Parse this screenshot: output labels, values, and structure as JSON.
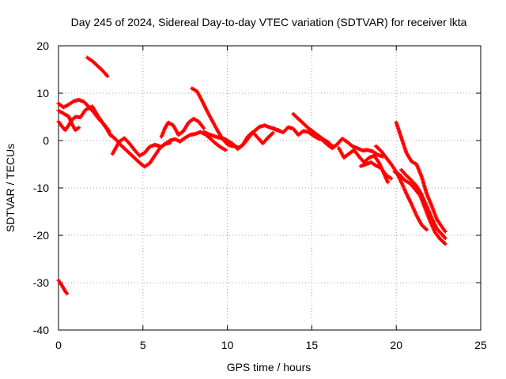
{
  "chart_data": {
    "type": "scatter",
    "title": "Day 245 of 2024, Sidereal Day-to-day VTEC variation (SDTVAR) for receiver lkta",
    "xlabel": "GPS time / hours",
    "ylabel": "SDTVAR / TECUs",
    "xlim": [
      0,
      25
    ],
    "ylim": [
      -40,
      20
    ],
    "xticks": [
      0,
      5,
      10,
      15,
      20,
      25
    ],
    "yticks": [
      -40,
      -30,
      -20,
      -10,
      0,
      10,
      20
    ],
    "grid": true,
    "series_color": "#ff0000",
    "marker": "plus",
    "tracks": [
      [
        [
          0.0,
          -29.5
        ],
        [
          0.2,
          -30.6
        ],
        [
          0.4,
          -31.8
        ],
        [
          0.5,
          -32.3
        ]
      ],
      [
        [
          1.7,
          17.5
        ],
        [
          2.0,
          16.8
        ],
        [
          2.3,
          15.8
        ],
        [
          2.6,
          14.8
        ],
        [
          2.9,
          13.6
        ]
      ],
      [
        [
          0.0,
          7.8
        ],
        [
          0.3,
          7.0
        ],
        [
          0.6,
          7.6
        ],
        [
          0.9,
          8.3
        ],
        [
          1.2,
          8.6
        ],
        [
          1.5,
          8.2
        ],
        [
          1.8,
          7.1
        ],
        [
          2.1,
          5.9
        ],
        [
          2.4,
          4.5
        ],
        [
          2.7,
          3.4
        ],
        [
          3.0,
          2.0
        ]
      ],
      [
        [
          0.0,
          4.0
        ],
        [
          0.2,
          3.0
        ],
        [
          0.4,
          2.2
        ],
        [
          0.6,
          3.2
        ],
        [
          0.8,
          4.4
        ],
        [
          1.0,
          5.0
        ],
        [
          1.3,
          4.9
        ],
        [
          1.6,
          6.5
        ],
        [
          2.0,
          7.2
        ],
        [
          2.3,
          5.4
        ],
        [
          2.6,
          3.8
        ],
        [
          2.9,
          2.2
        ],
        [
          3.1,
          1.0
        ]
      ],
      [
        [
          0.0,
          6.3
        ],
        [
          0.3,
          5.7
        ],
        [
          0.6,
          5.1
        ],
        [
          0.8,
          3.5
        ],
        [
          1.0,
          2.2
        ],
        [
          1.2,
          2.7
        ]
      ],
      [
        [
          3.1,
          1.2
        ],
        [
          3.4,
          0.2
        ],
        [
          3.7,
          -1.0
        ],
        [
          4.0,
          -2.0
        ],
        [
          4.3,
          -3.0
        ],
        [
          4.6,
          -4.0
        ],
        [
          4.9,
          -5.0
        ],
        [
          5.1,
          -5.5
        ],
        [
          5.4,
          -4.8
        ],
        [
          5.7,
          -3.2
        ],
        [
          6.0,
          -1.6
        ],
        [
          6.3,
          -0.7
        ],
        [
          6.6,
          -0.5
        ]
      ],
      [
        [
          3.2,
          -2.8
        ],
        [
          3.4,
          -1.5
        ],
        [
          3.6,
          -0.2
        ],
        [
          3.9,
          0.5
        ],
        [
          4.2,
          -0.6
        ],
        [
          4.5,
          -2.0
        ],
        [
          4.8,
          -3.2
        ],
        [
          5.1,
          -2.6
        ],
        [
          5.4,
          -1.3
        ],
        [
          5.7,
          -0.9
        ],
        [
          6.0,
          -1.2
        ]
      ],
      [
        [
          6.0,
          -1.5
        ],
        [
          6.3,
          -0.8
        ],
        [
          6.6,
          0.0
        ],
        [
          6.9,
          0.3
        ],
        [
          7.2,
          -0.2
        ],
        [
          7.5,
          0.6
        ],
        [
          7.8,
          1.2
        ],
        [
          8.1,
          1.4
        ],
        [
          8.4,
          1.8
        ],
        [
          8.7,
          1.3
        ],
        [
          9.0,
          0.4
        ],
        [
          9.3,
          -0.6
        ],
        [
          9.6,
          -1.4
        ],
        [
          9.9,
          -2.0
        ]
      ],
      [
        [
          6.1,
          0.8
        ],
        [
          6.3,
          2.6
        ],
        [
          6.5,
          3.8
        ],
        [
          6.8,
          3.2
        ],
        [
          7.1,
          1.2
        ],
        [
          7.4,
          2.0
        ],
        [
          7.7,
          3.8
        ],
        [
          8.0,
          4.6
        ],
        [
          8.3,
          4.0
        ],
        [
          8.6,
          2.6
        ]
      ],
      [
        [
          7.9,
          11.0
        ],
        [
          8.2,
          10.4
        ],
        [
          8.5,
          8.4
        ],
        [
          8.8,
          6.2
        ],
        [
          9.1,
          4.2
        ],
        [
          9.4,
          2.2
        ],
        [
          9.7,
          0.4
        ],
        [
          10.0,
          -0.8
        ],
        [
          10.3,
          -1.2
        ]
      ],
      [
        [
          8.6,
          1.8
        ],
        [
          9.0,
          1.2
        ],
        [
          9.4,
          0.7
        ],
        [
          9.8,
          0.4
        ],
        [
          10.2,
          -0.4
        ],
        [
          10.5,
          -1.3
        ]
      ],
      [
        [
          10.1,
          -0.5
        ],
        [
          10.4,
          -1.2
        ],
        [
          10.7,
          -1.5
        ],
        [
          11.0,
          -0.6
        ],
        [
          11.3,
          0.8
        ],
        [
          11.6,
          2.0
        ],
        [
          11.9,
          2.9
        ],
        [
          12.2,
          3.2
        ],
        [
          12.5,
          2.8
        ],
        [
          12.8,
          2.4
        ],
        [
          13.1,
          2.0
        ]
      ],
      [
        [
          10.6,
          -1.8
        ],
        [
          10.9,
          -1.0
        ],
        [
          11.2,
          0.8
        ],
        [
          11.5,
          1.8
        ],
        [
          11.8,
          0.6
        ],
        [
          12.1,
          -0.6
        ],
        [
          12.4,
          0.6
        ],
        [
          12.7,
          1.6
        ]
      ],
      [
        [
          12.7,
          2.6
        ],
        [
          13.0,
          2.2
        ],
        [
          13.3,
          1.7
        ],
        [
          13.6,
          2.8
        ],
        [
          13.9,
          2.5
        ],
        [
          14.2,
          1.2
        ],
        [
          14.5,
          2.0
        ],
        [
          14.8,
          1.8
        ],
        [
          15.1,
          1.0
        ],
        [
          15.4,
          0.4
        ],
        [
          15.7,
          0.2
        ],
        [
          16.0,
          -0.4
        ]
      ],
      [
        [
          13.9,
          5.6
        ],
        [
          14.2,
          4.6
        ],
        [
          14.5,
          3.6
        ],
        [
          14.8,
          2.6
        ],
        [
          15.1,
          1.8
        ],
        [
          15.4,
          1.0
        ],
        [
          15.7,
          0.2
        ],
        [
          16.0,
          -0.6
        ],
        [
          16.3,
          -1.4
        ]
      ],
      [
        [
          15.0,
          1.8
        ],
        [
          15.3,
          1.0
        ],
        [
          15.6,
          0.2
        ],
        [
          15.9,
          -0.8
        ],
        [
          16.2,
          -1.6
        ],
        [
          16.5,
          -0.8
        ],
        [
          16.8,
          0.4
        ],
        [
          17.1,
          -0.3
        ],
        [
          17.4,
          -1.2
        ],
        [
          17.7,
          -1.6
        ],
        [
          18.0,
          -2.1
        ],
        [
          18.3,
          -2.0
        ],
        [
          18.6,
          -2.3
        ],
        [
          18.9,
          -3.0
        ],
        [
          19.2,
          -3.4
        ]
      ],
      [
        [
          16.6,
          -1.6
        ],
        [
          16.9,
          -3.6
        ],
        [
          17.2,
          -2.8
        ],
        [
          17.5,
          -2.0
        ],
        [
          17.8,
          -3.4
        ],
        [
          18.1,
          -4.6
        ],
        [
          18.4,
          -3.6
        ],
        [
          18.7,
          -3.2
        ],
        [
          19.0,
          -4.8
        ],
        [
          19.3,
          -7.2
        ],
        [
          19.5,
          -8.8
        ]
      ],
      [
        [
          17.9,
          -5.4
        ],
        [
          18.2,
          -5.0
        ],
        [
          18.5,
          -4.6
        ],
        [
          18.8,
          -5.3
        ],
        [
          19.1,
          -5.8
        ],
        [
          19.4,
          -7.3
        ],
        [
          19.7,
          -8.0
        ]
      ],
      [
        [
          18.8,
          -1.2
        ],
        [
          19.1,
          -2.2
        ],
        [
          19.4,
          -3.6
        ],
        [
          19.7,
          -5.0
        ],
        [
          20.0,
          -6.6
        ],
        [
          20.3,
          -8.8
        ],
        [
          20.6,
          -11.2
        ],
        [
          20.9,
          -13.4
        ],
        [
          21.2,
          -15.8
        ],
        [
          21.5,
          -17.8
        ],
        [
          21.8,
          -18.8
        ]
      ],
      [
        [
          19.9,
          -6.6
        ],
        [
          20.2,
          -7.2
        ],
        [
          20.5,
          -8.4
        ],
        [
          20.8,
          -9.0
        ],
        [
          21.1,
          -10.2
        ],
        [
          21.4,
          -11.5
        ],
        [
          21.7,
          -14.2
        ],
        [
          22.0,
          -17.0
        ],
        [
          22.3,
          -19.4
        ],
        [
          22.6,
          -20.8
        ],
        [
          22.9,
          -21.8
        ]
      ],
      [
        [
          20.0,
          3.8
        ],
        [
          20.3,
          0.6
        ],
        [
          20.6,
          -2.6
        ],
        [
          20.9,
          -4.4
        ],
        [
          21.2,
          -5.0
        ],
        [
          21.5,
          -7.6
        ],
        [
          21.8,
          -11.2
        ],
        [
          22.1,
          -13.8
        ],
        [
          22.4,
          -16.6
        ],
        [
          22.7,
          -18.2
        ],
        [
          22.9,
          -19.2
        ]
      ],
      [
        [
          20.3,
          -6.2
        ],
        [
          20.6,
          -7.4
        ],
        [
          20.9,
          -8.4
        ],
        [
          21.2,
          -9.6
        ],
        [
          21.5,
          -11.4
        ],
        [
          21.8,
          -13.8
        ],
        [
          22.1,
          -16.4
        ],
        [
          22.4,
          -18.6
        ],
        [
          22.7,
          -19.8
        ],
        [
          22.9,
          -20.6
        ]
      ]
    ]
  }
}
